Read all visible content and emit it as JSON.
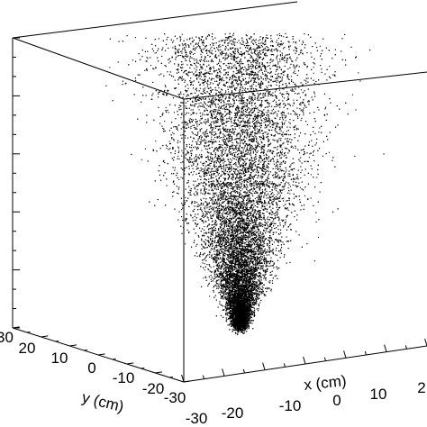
{
  "chart_data": {
    "type": "scatter",
    "subtype": "3d-point-cloud",
    "marker_color": "#000000",
    "xlabel": "x (cm)",
    "ylabel": "y (cm)",
    "zlabel": "",
    "xlim": [
      -30,
      30
    ],
    "ylim": [
      -30,
      30
    ],
    "x_ticks": [
      "-20",
      "-10",
      "0",
      "10",
      "2"
    ],
    "y_ticks": [
      "30",
      "20",
      "10",
      "0",
      "-10",
      "-20",
      "-30"
    ],
    "y_ticks_lower": [
      "-30"
    ],
    "z_tick_count": 16,
    "grid": false,
    "legend": "none",
    "cloud_shape": "inverted cone, dense apex near bottom center, diffuse widening top",
    "cloud_estimated_extent": {
      "x_range": [
        -20,
        20
      ],
      "y_range": [
        -20,
        20
      ],
      "apex_point": [
        0,
        0
      ]
    }
  }
}
